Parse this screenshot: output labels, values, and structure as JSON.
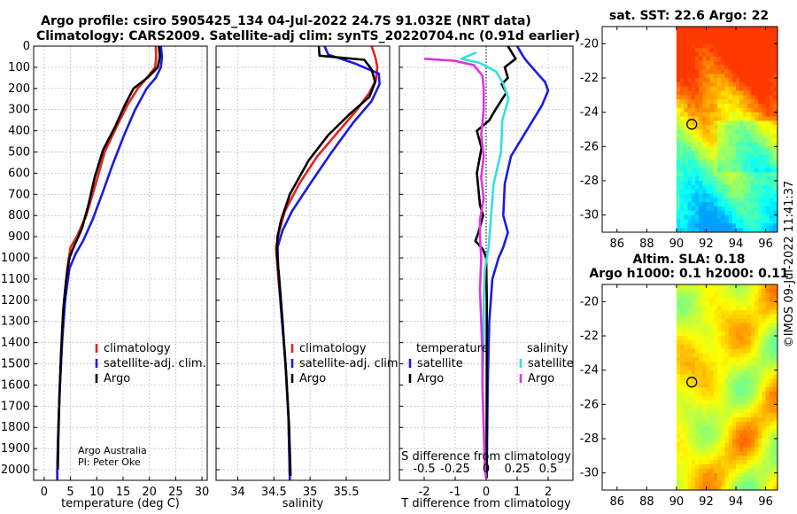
{
  "title": {
    "line1": "Argo profile: csiro 5905425_134 04-Jul-2022 24.7S 91.032E (NRT data)",
    "line2": "Climatology: CARS2009. Satellite-adj clim: synTS_20220704.nc (0.91d earlier)"
  },
  "colors": {
    "climatology": "#e8201a",
    "satellite": "#1a1ae6",
    "argo": "#000000",
    "sat_s": "#33e0e0",
    "argo_s": "#e033e0"
  },
  "chart_data": [
    {
      "id": "temperature",
      "type": "line",
      "xlabel": "temperature (deg C)",
      "ylabel": "",
      "xlim": [
        -2,
        31
      ],
      "ylim": [
        2050,
        0
      ],
      "xticks": [
        0,
        5,
        10,
        15,
        20,
        25,
        30
      ],
      "yticks": [
        0,
        100,
        200,
        300,
        400,
        500,
        600,
        700,
        800,
        900,
        1000,
        1100,
        1200,
        1300,
        1400,
        1500,
        1600,
        1700,
        1800,
        1900,
        2000
      ],
      "legend": [
        "climatology",
        "satellite-adj. clim.",
        "Argo"
      ],
      "footnote": [
        "Argo Australia",
        "PI: Peter Oke"
      ],
      "series": [
        {
          "name": "climatology",
          "color": "#e8201a",
          "points": [
            [
              21.2,
              0
            ],
            [
              21.3,
              50
            ],
            [
              21.1,
              100
            ],
            [
              19.5,
              150
            ],
            [
              17.8,
              200
            ],
            [
              15.8,
              280
            ],
            [
              13.8,
              380
            ],
            [
              11.5,
              500
            ],
            [
              9.8,
              650
            ],
            [
              8.0,
              800
            ],
            [
              6.2,
              900
            ],
            [
              5.0,
              950
            ],
            [
              4.4,
              1050
            ],
            [
              3.8,
              1200
            ],
            [
              3.4,
              1400
            ],
            [
              3.0,
              1600
            ],
            [
              2.7,
              1800
            ],
            [
              2.5,
              2000
            ],
            [
              2.5,
              2050
            ]
          ]
        },
        {
          "name": "satellite-adj. clim.",
          "color": "#1a1ae6",
          "points": [
            [
              22.2,
              0
            ],
            [
              22.4,
              50
            ],
            [
              22.2,
              100
            ],
            [
              21.2,
              150
            ],
            [
              19.5,
              200
            ],
            [
              17.3,
              300
            ],
            [
              15.2,
              420
            ],
            [
              13.0,
              560
            ],
            [
              11.0,
              700
            ],
            [
              9.2,
              820
            ],
            [
              7.4,
              920
            ],
            [
              6.0,
              980
            ],
            [
              4.8,
              1050
            ],
            [
              4.0,
              1200
            ],
            [
              3.4,
              1400
            ],
            [
              3.0,
              1600
            ],
            [
              2.7,
              1800
            ],
            [
              2.5,
              2000
            ],
            [
              2.5,
              2050
            ]
          ]
        },
        {
          "name": "Argo",
          "color": "#000000",
          "points": [
            [
              21.8,
              0
            ],
            [
              22.0,
              50
            ],
            [
              21.6,
              100
            ],
            [
              19.6,
              150
            ],
            [
              17.0,
              200
            ],
            [
              15.3,
              280
            ],
            [
              13.5,
              380
            ],
            [
              11.2,
              490
            ],
            [
              9.6,
              620
            ],
            [
              8.4,
              750
            ],
            [
              7.2,
              860
            ],
            [
              5.6,
              950
            ],
            [
              4.8,
              1000
            ],
            [
              4.2,
              1100
            ],
            [
              3.6,
              1250
            ],
            [
              3.2,
              1450
            ],
            [
              2.9,
              1650
            ],
            [
              2.7,
              1850
            ],
            [
              2.6,
              2000
            ]
          ]
        }
      ]
    },
    {
      "id": "salinity",
      "type": "line",
      "xlabel": "salinity",
      "xlim": [
        33.7,
        36.1
      ],
      "ylim": [
        2050,
        0
      ],
      "xticks": [
        34,
        34.5,
        35,
        35.5
      ],
      "xticklabels": [
        "34",
        "34.5",
        "35",
        "35.5"
      ],
      "legend": [
        "climatology",
        "satellite-adj. clim.",
        "Argo"
      ],
      "series": [
        {
          "name": "climatology",
          "color": "#e8201a",
          "points": [
            [
              35.85,
              0
            ],
            [
              35.9,
              50
            ],
            [
              35.93,
              100
            ],
            [
              35.91,
              160
            ],
            [
              35.82,
              220
            ],
            [
              35.65,
              300
            ],
            [
              35.4,
              400
            ],
            [
              35.1,
              520
            ],
            [
              34.85,
              650
            ],
            [
              34.65,
              780
            ],
            [
              34.57,
              880
            ],
            [
              34.53,
              950
            ],
            [
              34.55,
              1050
            ],
            [
              34.6,
              1250
            ],
            [
              34.66,
              1500
            ],
            [
              34.7,
              1750
            ],
            [
              34.72,
              2050
            ]
          ]
        },
        {
          "name": "satellite-adj. clim.",
          "color": "#1a1ae6",
          "points": [
            [
              35.2,
              0
            ],
            [
              35.25,
              40
            ],
            [
              35.6,
              80
            ],
            [
              35.95,
              130
            ],
            [
              35.96,
              180
            ],
            [
              35.85,
              260
            ],
            [
              35.6,
              360
            ],
            [
              35.3,
              500
            ],
            [
              35.0,
              650
            ],
            [
              34.75,
              780
            ],
            [
              34.62,
              870
            ],
            [
              34.55,
              950
            ],
            [
              34.56,
              1050
            ],
            [
              34.6,
              1250
            ],
            [
              34.66,
              1500
            ],
            [
              34.7,
              1750
            ],
            [
              34.72,
              2050
            ]
          ]
        },
        {
          "name": "Argo",
          "color": "#000000",
          "points": [
            [
              35.12,
              0
            ],
            [
              35.13,
              45
            ],
            [
              35.75,
              65
            ],
            [
              35.85,
              110
            ],
            [
              35.9,
              170
            ],
            [
              35.82,
              240
            ],
            [
              35.55,
              320
            ],
            [
              35.25,
              420
            ],
            [
              34.98,
              540
            ],
            [
              34.72,
              700
            ],
            [
              34.6,
              820
            ],
            [
              34.55,
              900
            ],
            [
              34.54,
              980
            ],
            [
              34.57,
              1080
            ],
            [
              34.62,
              1300
            ],
            [
              34.67,
              1550
            ],
            [
              34.71,
              1800
            ],
            [
              34.73,
              2030
            ]
          ]
        }
      ]
    },
    {
      "id": "difference",
      "type": "line",
      "xlabel": "T difference from climatology",
      "xlabel2": "S difference from climatology",
      "xlim": [
        -2.8,
        2.8
      ],
      "ylim": [
        2050,
        0
      ],
      "xticks": [
        -2,
        -1,
        0,
        1,
        2
      ],
      "xticks2": [
        -0.5,
        -0.25,
        0,
        0.25,
        0.5
      ],
      "xticks2labels": [
        "-0.5",
        "-0.25",
        "0",
        "0.25",
        "0.5"
      ],
      "legend_temperature_title": "temperature",
      "legend_salinity_title": "salinity",
      "legend_temperature": [
        "satellite",
        "Argo"
      ],
      "legend_salinity": [
        "satellite",
        "Argo"
      ],
      "series": [
        {
          "name": "T satellite",
          "color": "#1a1ae6",
          "points": [
            [
              1.0,
              0
            ],
            [
              1.2,
              50
            ],
            [
              1.3,
              70
            ],
            [
              1.6,
              120
            ],
            [
              1.9,
              170
            ],
            [
              2.0,
              210
            ],
            [
              1.8,
              280
            ],
            [
              1.3,
              400
            ],
            [
              0.8,
              520
            ],
            [
              0.6,
              650
            ],
            [
              0.55,
              800
            ],
            [
              0.7,
              880
            ],
            [
              0.55,
              950
            ],
            [
              0.4,
              1000
            ],
            [
              0.2,
              1100
            ],
            [
              0.1,
              1300
            ],
            [
              0.05,
              1600
            ],
            [
              0.02,
              2000
            ],
            [
              0.02,
              2040
            ]
          ]
        },
        {
          "name": "T Argo",
          "color": "#000000",
          "points": [
            [
              0.7,
              0
            ],
            [
              0.95,
              60
            ],
            [
              0.6,
              100
            ],
            [
              0.7,
              150
            ],
            [
              0.5,
              180
            ],
            [
              0.65,
              220
            ],
            [
              0.3,
              300
            ],
            [
              0.1,
              350
            ],
            [
              -0.3,
              400
            ],
            [
              -0.15,
              480
            ],
            [
              -0.3,
              600
            ],
            [
              -0.2,
              750
            ],
            [
              -0.1,
              800
            ],
            [
              -0.25,
              880
            ],
            [
              -0.35,
              920
            ],
            [
              -0.1,
              960
            ],
            [
              0.0,
              1000
            ],
            [
              0.02,
              1200
            ],
            [
              0.02,
              1500
            ],
            [
              0.01,
              2040
            ]
          ]
        },
        {
          "name": "S satellite",
          "color": "#33e0e0",
          "points": [
            [
              -0.08,
              30
            ],
            [
              -0.2,
              60
            ],
            [
              -0.05,
              80
            ],
            [
              0.08,
              120
            ],
            [
              0.14,
              180
            ],
            [
              0.18,
              250
            ],
            [
              0.13,
              350
            ],
            [
              0.12,
              500
            ],
            [
              0.06,
              650
            ],
            [
              0.04,
              800
            ],
            [
              0.02,
              950
            ],
            [
              -0.01,
              1050
            ],
            [
              -0.02,
              1200
            ],
            [
              -0.02,
              1400
            ],
            [
              -0.03,
              1600
            ],
            [
              -0.02,
              1800
            ],
            [
              -0.01,
              2000
            ],
            [
              0.0,
              2040
            ]
          ]
        },
        {
          "name": "S Argo",
          "color": "#e033e0",
          "points": [
            [
              -0.5,
              60
            ],
            [
              -0.25,
              70
            ],
            [
              -0.1,
              90
            ],
            [
              -0.03,
              140
            ],
            [
              -0.02,
              200
            ],
            [
              -0.02,
              300
            ],
            [
              -0.04,
              420
            ],
            [
              -0.02,
              520
            ],
            [
              -0.04,
              620
            ],
            [
              -0.02,
              720
            ],
            [
              -0.05,
              820
            ],
            [
              -0.05,
              900
            ],
            [
              -0.04,
              1000
            ],
            [
              -0.05,
              1150
            ],
            [
              -0.04,
              1300
            ],
            [
              -0.03,
              1450
            ],
            [
              -0.03,
              1600
            ],
            [
              -0.02,
              1800
            ],
            [
              -0.01,
              2000
            ],
            [
              0.0,
              2040
            ]
          ]
        }
      ]
    },
    {
      "id": "sst_map",
      "type": "heatmap",
      "title": "sat. SST: 22.6 Argo: 22",
      "xlim": [
        85,
        96.8
      ],
      "ylim": [
        -31,
        -19
      ],
      "xticks": [
        86,
        88,
        90,
        92,
        94,
        96
      ],
      "yticks": [
        -20,
        -22,
        -24,
        -26,
        -28,
        -30
      ],
      "marker": {
        "lon": 91.032,
        "lat": -24.7
      },
      "data_west_edge": 90
    },
    {
      "id": "sla_map",
      "type": "heatmap",
      "title": "Altim. SLA: 0.18",
      "subtitle": "Argo h1000: 0.1 h2000: 0.11",
      "xlim": [
        85,
        96.8
      ],
      "ylim": [
        -31,
        -19
      ],
      "xticks": [
        86,
        88,
        90,
        92,
        94,
        96
      ],
      "yticks": [
        -20,
        -22,
        -24,
        -26,
        -28,
        -30
      ],
      "marker": {
        "lon": 91.032,
        "lat": -24.7
      },
      "data_west_edge": 90
    }
  ],
  "footer": {
    "credits_line1": "Argo Australia",
    "credits_line2": "PI: Peter Oke",
    "watermark": "©IMOS 09-Jul-2022 11:41:37"
  }
}
